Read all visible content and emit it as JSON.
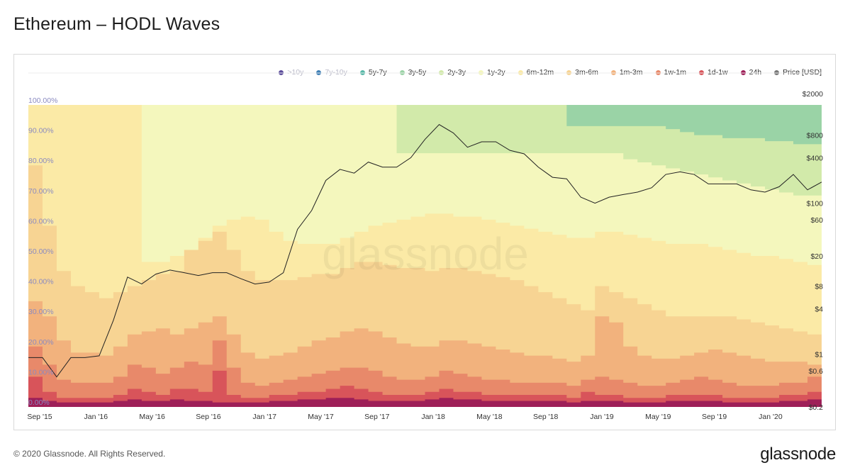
{
  "title": "Ethereum – HODL Waves",
  "footer": {
    "copyright": "© 2020 Glassnode. All Rights Reserved.",
    "brand": "glassnode"
  },
  "watermark": "glassnode",
  "legend": [
    {
      "label": ">10y",
      "color": "#5b4c9a",
      "muted": true
    },
    {
      "label": "7y-10y",
      "color": "#3f7fb5",
      "muted": true
    },
    {
      "label": "5y-7y",
      "color": "#58b8a8",
      "muted": false
    },
    {
      "label": "3y-5y",
      "color": "#9ad3a6",
      "muted": false
    },
    {
      "label": "2y-3y",
      "color": "#d2eaaa",
      "muted": false
    },
    {
      "label": "1y-2y",
      "color": "#f4f7bd",
      "muted": false
    },
    {
      "label": "6m-12m",
      "color": "#fbeaa6",
      "muted": false
    },
    {
      "label": "3m-6m",
      "color": "#f7d493",
      "muted": false
    },
    {
      "label": "1m-3m",
      "color": "#f2b27d",
      "muted": false
    },
    {
      "label": "1w-1m",
      "color": "#e8896a",
      "muted": false
    },
    {
      "label": "1d-1w",
      "color": "#d8545a",
      "muted": false
    },
    {
      "label": "24h",
      "color": "#9e1f58",
      "muted": false
    },
    {
      "label": "Price [USD]",
      "color": "#777777",
      "muted": false
    }
  ],
  "chart_data": {
    "type": "area",
    "title": "Ethereum – HODL Waves",
    "stacked": true,
    "x_ticks": [
      "Sep '15",
      "Jan '16",
      "May '16",
      "Sep '16",
      "Jan '17",
      "May '17",
      "Sep '17",
      "Jan '18",
      "May '18",
      "Sep '18",
      "Jan '19",
      "May '19",
      "Sep '19",
      "Jan '20"
    ],
    "y_left_ticks": [
      "0.00%",
      "10.00%",
      "20.00%",
      "30.00%",
      "40.00%",
      "50.00%",
      "60.00%",
      "70.00%",
      "80.00%",
      "90.00%",
      "100.00%"
    ],
    "y_right_ticks": [
      "$0.2",
      "$0.6",
      "$1",
      "$4",
      "$8",
      "$20",
      "$60",
      "$100",
      "$400",
      "$800",
      "$2000"
    ],
    "ylim_left": [
      0,
      100
    ],
    "y_right_scale": "log",
    "ylim_right": [
      0.2,
      2000
    ],
    "x_months": [
      "2015-08",
      "2015-09",
      "2015-10",
      "2015-11",
      "2015-12",
      "2016-01",
      "2016-02",
      "2016-03",
      "2016-04",
      "2016-05",
      "2016-06",
      "2016-07",
      "2016-08",
      "2016-09",
      "2016-10",
      "2016-11",
      "2016-12",
      "2017-01",
      "2017-02",
      "2017-03",
      "2017-04",
      "2017-05",
      "2017-06",
      "2017-07",
      "2017-08",
      "2017-09",
      "2017-10",
      "2017-11",
      "2017-12",
      "2018-01",
      "2018-02",
      "2018-03",
      "2018-04",
      "2018-05",
      "2018-06",
      "2018-07",
      "2018-08",
      "2018-09",
      "2018-10",
      "2018-11",
      "2018-12",
      "2019-01",
      "2019-02",
      "2019-03",
      "2019-04",
      "2019-05",
      "2019-06",
      "2019-07",
      "2019-08",
      "2019-09",
      "2019-10",
      "2019-11",
      "2019-12",
      "2020-01",
      "2020-02",
      "2020-03",
      "2020-04"
    ],
    "series": [
      {
        "name": "24h",
        "values": [
          3,
          2,
          1.5,
          1.5,
          1.5,
          1.5,
          2,
          2.5,
          2,
          2,
          2.5,
          2,
          2,
          1.5,
          1.5,
          1.5,
          1.5,
          2,
          2,
          2.5,
          2.5,
          3,
          3,
          2.5,
          2,
          2,
          2,
          2,
          2.5,
          3,
          2.5,
          2.5,
          2,
          2,
          2,
          2,
          2,
          2,
          1.5,
          2,
          2,
          2,
          1.5,
          1.5,
          1.5,
          2,
          2,
          2,
          2,
          1.5,
          1.5,
          1.5,
          1.5,
          2,
          2,
          2.5,
          2
        ]
      },
      {
        "name": "1d-1w",
        "values": [
          10,
          5,
          3,
          3,
          3,
          3,
          4,
          6,
          5,
          4,
          6,
          6,
          5,
          12,
          4,
          3,
          3,
          4,
          4,
          5,
          5,
          6,
          7,
          6,
          5,
          4,
          4,
          4,
          5,
          6,
          5,
          5,
          4,
          4,
          4,
          4,
          4,
          4,
          3,
          5,
          4,
          4,
          3,
          3,
          3,
          4,
          4,
          4,
          4,
          3,
          3,
          3,
          3,
          4,
          4,
          5,
          4
        ]
      },
      {
        "name": "1w-1m",
        "values": [
          20,
          14,
          9,
          8,
          8,
          8,
          10,
          14,
          13,
          11,
          13,
          15,
          14,
          22,
          13,
          8,
          7,
          8,
          9,
          10,
          11,
          12,
          13,
          13,
          12,
          10,
          9,
          9,
          10,
          12,
          11,
          10,
          9,
          9,
          8,
          8,
          8,
          8,
          7,
          9,
          10,
          9,
          8,
          7,
          7,
          8,
          9,
          10,
          9,
          8,
          7,
          7,
          7,
          8,
          8,
          10,
          9
        ]
      },
      {
        "name": "1m-3m",
        "values": [
          35,
          30,
          22,
          18,
          18,
          17,
          20,
          24,
          25,
          26,
          24,
          26,
          28,
          30,
          24,
          18,
          16,
          17,
          18,
          20,
          22,
          23,
          25,
          26,
          25,
          23,
          21,
          20,
          20,
          22,
          22,
          21,
          20,
          19,
          18,
          17,
          17,
          16,
          15,
          17,
          30,
          28,
          20,
          17,
          16,
          16,
          17,
          18,
          19,
          18,
          17,
          16,
          15,
          15,
          15,
          14,
          15
        ]
      },
      {
        "name": "3m-6m",
        "values": [
          80,
          60,
          45,
          40,
          38,
          36,
          38,
          40,
          42,
          44,
          45,
          52,
          55,
          58,
          52,
          45,
          42,
          42,
          42,
          43,
          44,
          44,
          46,
          48,
          48,
          47,
          46,
          46,
          45,
          46,
          46,
          45,
          44,
          43,
          42,
          40,
          38,
          36,
          34,
          32,
          40,
          38,
          36,
          34,
          32,
          30,
          30,
          30,
          30,
          30,
          29,
          28,
          27,
          26,
          25,
          24,
          24
        ]
      },
      {
        "name": "6m-12m",
        "values": [
          100,
          100,
          100,
          100,
          100,
          100,
          100,
          100,
          48,
          48,
          50,
          52,
          56,
          60,
          62,
          63,
          62,
          58,
          55,
          54,
          54,
          54,
          56,
          58,
          60,
          61,
          62,
          63,
          64,
          64,
          63,
          63,
          62,
          61,
          60,
          59,
          58,
          57,
          56,
          56,
          58,
          58,
          57,
          56,
          55,
          54,
          54,
          54,
          53,
          52,
          51,
          50,
          50,
          49,
          48,
          47,
          47
        ]
      },
      {
        "name": "1y-2y",
        "values": [
          100,
          100,
          100,
          100,
          100,
          100,
          100,
          100,
          100,
          100,
          100,
          100,
          100,
          100,
          100,
          100,
          100,
          100,
          100,
          100,
          100,
          100,
          100,
          100,
          100,
          100,
          84,
          84,
          84,
          84,
          84,
          84,
          84,
          84,
          84,
          84,
          84,
          84,
          84,
          84,
          84,
          84,
          82,
          81,
          80,
          79,
          78,
          77,
          76,
          75,
          74,
          73,
          72,
          71,
          70,
          70,
          69
        ]
      },
      {
        "name": "2y-3y",
        "values": [
          100,
          100,
          100,
          100,
          100,
          100,
          100,
          100,
          100,
          100,
          100,
          100,
          100,
          100,
          100,
          100,
          100,
          100,
          100,
          100,
          100,
          100,
          100,
          100,
          100,
          100,
          100,
          100,
          100,
          100,
          100,
          100,
          100,
          100,
          100,
          100,
          100,
          100,
          93,
          93,
          93,
          93,
          93,
          93,
          93,
          92,
          91,
          90,
          90,
          89,
          89,
          89,
          88,
          88,
          87,
          87,
          87
        ]
      },
      {
        "name": "3y-5y",
        "values": [
          100,
          100,
          100,
          100,
          100,
          100,
          100,
          100,
          100,
          100,
          100,
          100,
          100,
          100,
          100,
          100,
          100,
          100,
          100,
          100,
          100,
          100,
          100,
          100,
          100,
          100,
          100,
          100,
          100,
          100,
          100,
          100,
          100,
          100,
          100,
          100,
          100,
          100,
          100,
          100,
          100,
          100,
          100,
          100,
          100,
          100,
          100,
          100,
          100,
          100,
          100,
          100,
          100,
          100,
          100,
          100,
          100
        ]
      }
    ],
    "price": [
      0.9,
      0.9,
      0.5,
      0.9,
      0.9,
      0.95,
      2.8,
      10.5,
      8.5,
      11.5,
      13,
      12,
      11,
      12,
      12,
      10,
      8.5,
      9,
      12,
      45,
      80,
      200,
      280,
      250,
      350,
      300,
      300,
      400,
      700,
      1100,
      850,
      550,
      650,
      650,
      500,
      450,
      300,
      220,
      210,
      120,
      100,
      120,
      130,
      140,
      160,
      240,
      260,
      240,
      180,
      180,
      180,
      150,
      140,
      165,
      240,
      150,
      190
    ]
  }
}
